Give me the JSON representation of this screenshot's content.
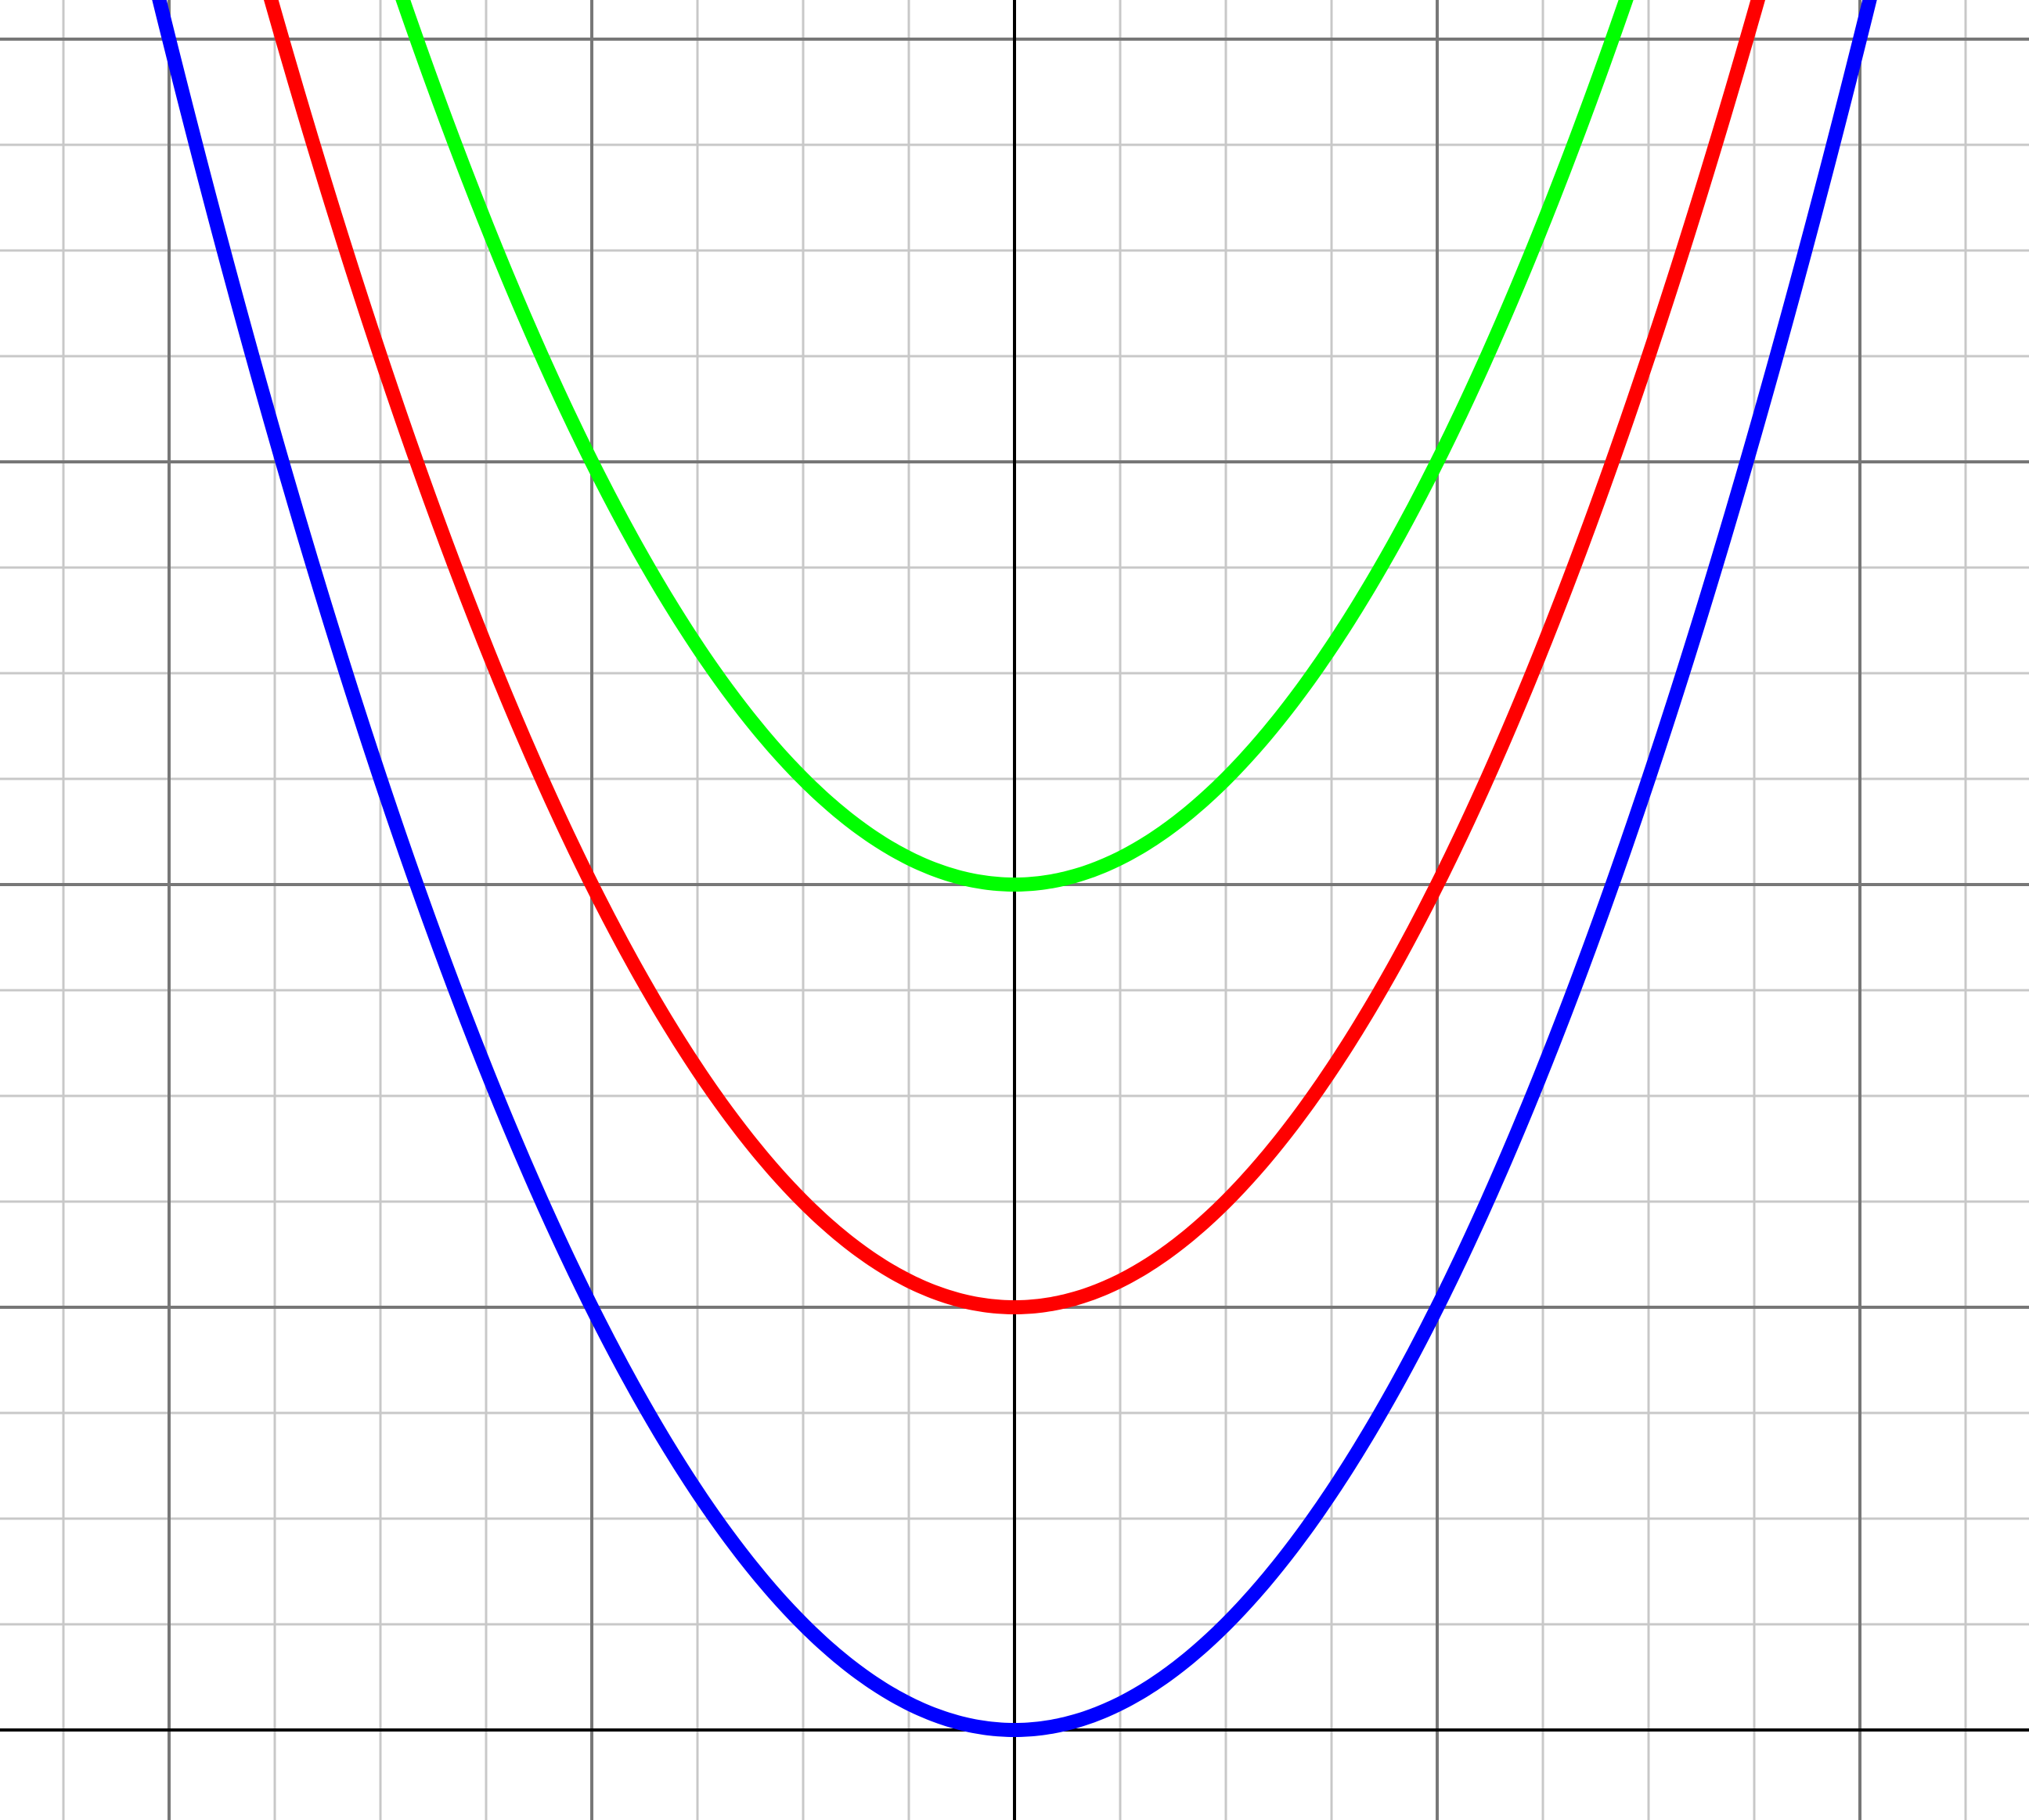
{
  "chart_data": {
    "type": "line",
    "title": "",
    "xlabel": "",
    "ylabel": "",
    "xlim": [
      -2.4,
      2.4
    ],
    "ylim": [
      -0.2,
      4.1
    ],
    "grid": true,
    "grid_minor_step": 0.25,
    "grid_major_step": 1,
    "axes_color": "#000000",
    "major_grid_color": "#777777",
    "minor_grid_color": "#c8c8c8",
    "series": [
      {
        "color": "#0000ff",
        "equation_a": 1,
        "equation_c": 0
      },
      {
        "color": "#ff0000",
        "equation_a": 1,
        "equation_c": 1
      },
      {
        "color": "#00ff00",
        "equation_a": 1,
        "equation_c": 2
      }
    ]
  }
}
